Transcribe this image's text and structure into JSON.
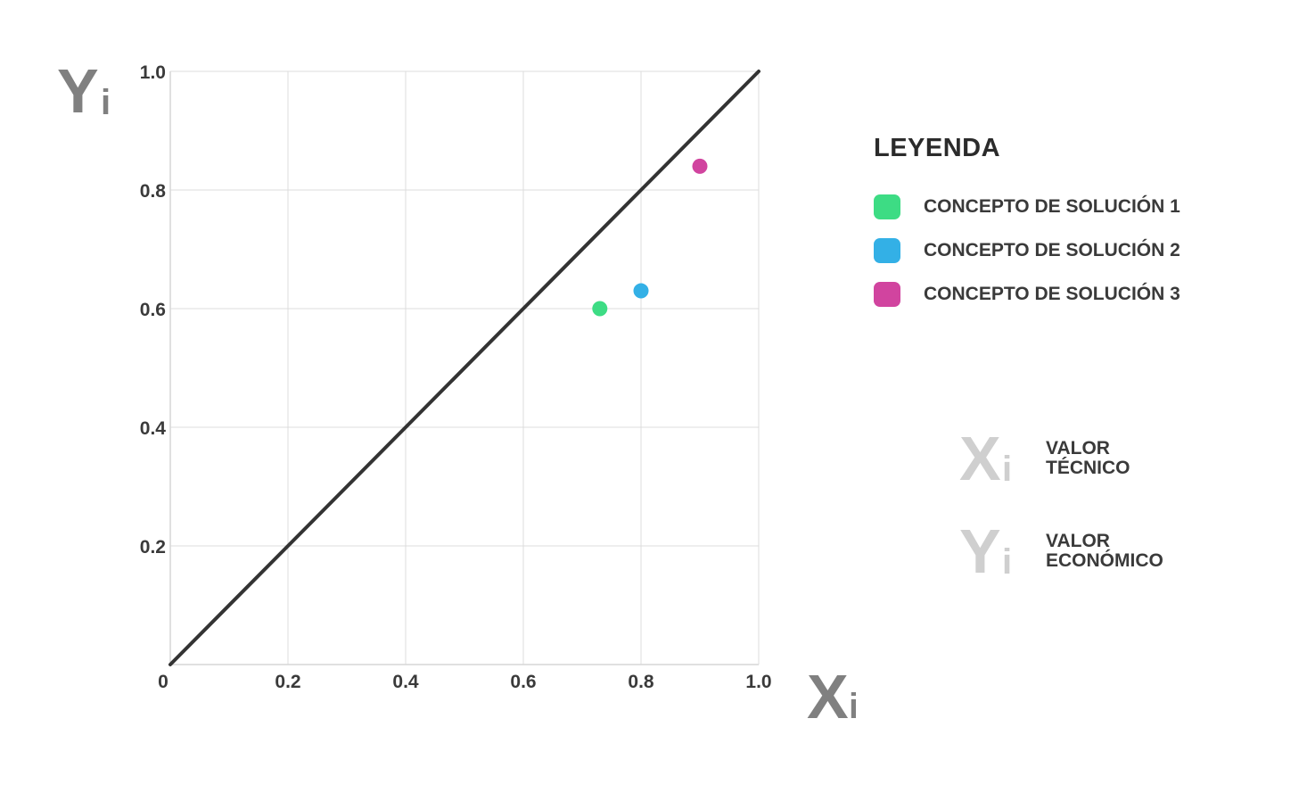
{
  "chart_data": {
    "type": "scatter",
    "xlim": [
      0,
      1.0
    ],
    "ylim": [
      0,
      1.0
    ],
    "grid": true,
    "x_ticks": [
      "0",
      "0.2",
      "0.4",
      "0.6",
      "0.8",
      "1.0"
    ],
    "x_tick_values": [
      0,
      0.2,
      0.4,
      0.6,
      0.8,
      1.0
    ],
    "y_ticks": [
      "0.2",
      "0.4",
      "0.6",
      "0.8",
      "1.0"
    ],
    "y_tick_values": [
      0.2,
      0.4,
      0.6,
      0.8,
      1.0
    ],
    "xlabel": "X",
    "xlabel_sub": "i",
    "ylabel": "Y",
    "ylabel_sub": "i",
    "reference_line": {
      "from": [
        0,
        0
      ],
      "to": [
        1.0,
        1.0
      ],
      "color": "#333333"
    },
    "series": [
      {
        "name": "CONCEPTO DE SOLUCIÓN 1",
        "color": "#3ddc84",
        "x": [
          0.73
        ],
        "y": [
          0.6
        ]
      },
      {
        "name": "CONCEPTO DE SOLUCIÓN 2",
        "color": "#33b0e6",
        "x": [
          0.8
        ],
        "y": [
          0.63
        ]
      },
      {
        "name": "CONCEPTO DE SOLUCIÓN 3",
        "color": "#d1449f",
        "x": [
          0.9
        ],
        "y": [
          0.84
        ]
      }
    ],
    "legend_position": "right"
  },
  "legend": {
    "title": "LEYENDA",
    "items": [
      {
        "label": "CONCEPTO DE SOLUCIÓN 1",
        "color": "#3ddc84"
      },
      {
        "label": "CONCEPTO DE SOLUCIÓN 2",
        "color": "#33b0e6"
      },
      {
        "label": "CONCEPTO DE SOLUCIÓN 3",
        "color": "#d1449f"
      }
    ]
  },
  "key": {
    "x": {
      "symbol": "X",
      "sub": "i",
      "line1": "VALOR",
      "line2": "TÉCNICO"
    },
    "y": {
      "symbol": "Y",
      "sub": "i",
      "line1": "VALOR",
      "line2": "ECONÓMICO"
    }
  }
}
